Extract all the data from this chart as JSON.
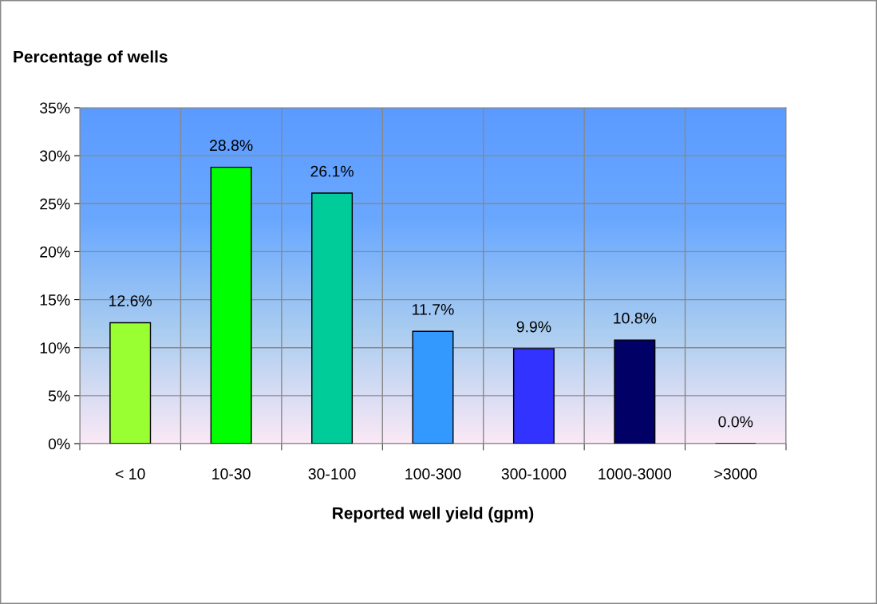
{
  "chart_data": {
    "type": "bar",
    "title": "Percentage of wells",
    "xlabel": "Reported well yield (gpm)",
    "categories": [
      "< 10",
      "10-30",
      "30-100",
      "100-300",
      "300-1000",
      "1000-3000",
      ">3000"
    ],
    "values": [
      12.6,
      28.8,
      26.1,
      11.7,
      9.9,
      10.8,
      0.0
    ],
    "colors": [
      "#99ff33",
      "#00ff00",
      "#00cc99",
      "#3399ff",
      "#3333ff",
      "#000066",
      "#000000"
    ],
    "value_labels": [
      "12.6%",
      "28.8%",
      "26.1%",
      "11.7%",
      "9.9%",
      "10.8%",
      "0.0%"
    ],
    "ylim": [
      0,
      35
    ],
    "yticks": [
      {
        "value": 0,
        "label": "0%"
      },
      {
        "value": 5,
        "label": "5%"
      },
      {
        "value": 10,
        "label": "10%"
      },
      {
        "value": 15,
        "label": "15%"
      },
      {
        "value": 20,
        "label": "20%"
      },
      {
        "value": 25,
        "label": "25%"
      },
      {
        "value": 30,
        "label": "30%"
      },
      {
        "value": 35,
        "label": "35%"
      }
    ],
    "grid": true,
    "legend": false
  }
}
